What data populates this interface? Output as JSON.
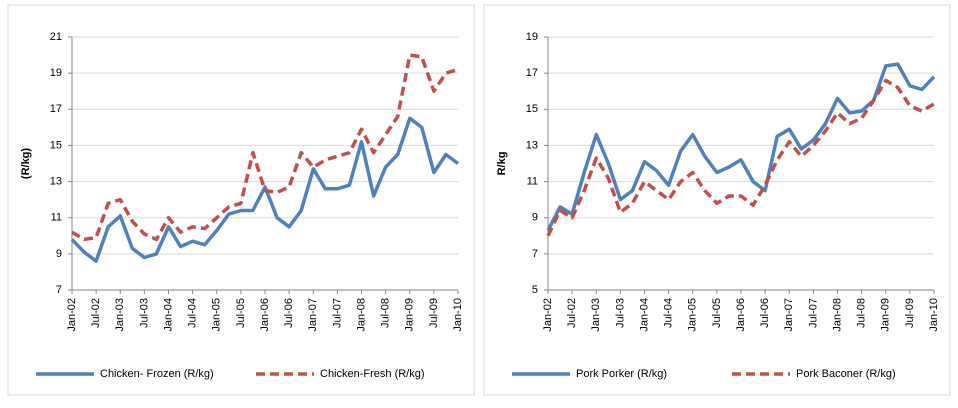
{
  "chart_data": [
    {
      "type": "line",
      "y_label": "(R/kg)",
      "categories": [
        "Jan-02",
        null,
        "Jul-02",
        null,
        "Jan-03",
        null,
        "Jul-03",
        null,
        "Jan-04",
        null,
        "Jul-04",
        null,
        "Jan-05",
        null,
        "Jul-05",
        null,
        "Jan-06",
        null,
        "Jul-06",
        null,
        "Jan-07",
        null,
        "Jul-07",
        null,
        "Jan-08",
        null,
        "Jul-08",
        null,
        "Jan-09",
        null,
        "Jul-09",
        null,
        "Jan-10"
      ],
      "ylim": [
        7,
        21
      ],
      "yticks": [
        7,
        9,
        11,
        13,
        15,
        17,
        19,
        21
      ],
      "grid": true,
      "series": [
        {
          "name": "Chicken- Frozen (R/kg)",
          "color": "#4f81bd",
          "line_style": "solid",
          "values": [
            9.8,
            9.1,
            8.6,
            10.5,
            11.1,
            9.3,
            8.8,
            9.0,
            10.5,
            9.4,
            9.7,
            9.5,
            10.3,
            11.2,
            11.4,
            11.4,
            12.7,
            11.0,
            10.5,
            11.4,
            13.7,
            12.6,
            12.6,
            12.8,
            15.2,
            12.2,
            13.8,
            14.5,
            16.5,
            16.0,
            13.5,
            14.5,
            14.0
          ]
        },
        {
          "name": "Chicken-Fresh (R/kg)",
          "color": "#c0504d",
          "line_style": "dashed",
          "values": [
            10.2,
            9.8,
            9.9,
            11.8,
            12.0,
            10.8,
            10.1,
            9.8,
            11.0,
            10.2,
            10.5,
            10.4,
            11.0,
            11.6,
            11.8,
            14.6,
            12.5,
            12.4,
            12.7,
            14.6,
            13.8,
            14.2,
            14.4,
            14.6,
            15.9,
            14.6,
            15.6,
            16.6,
            20.0,
            19.9,
            18.0,
            19.0,
            19.2
          ]
        }
      ]
    },
    {
      "type": "line",
      "y_label": "R/kg",
      "categories": [
        "Jan-02",
        null,
        "Jul-02",
        null,
        "Jan-03",
        null,
        "Jul-03",
        null,
        "Jan-04",
        null,
        "Jul-04",
        null,
        "Jan-05",
        null,
        "Jul-05",
        null,
        "Jan-06",
        null,
        "Jul-06",
        null,
        "Jan-07",
        null,
        "Jul-07",
        null,
        "Jan-08",
        null,
        "Jul-08",
        null,
        "Jan-09",
        null,
        "Jul-09",
        null,
        "Jan-10"
      ],
      "ylim": [
        5,
        19
      ],
      "yticks": [
        5,
        7,
        9,
        11,
        13,
        15,
        17,
        19
      ],
      "grid": true,
      "series": [
        {
          "name": "Pork Porker (R/kg)",
          "color": "#4f81bd",
          "line_style": "solid",
          "values": [
            8.3,
            9.6,
            9.2,
            11.5,
            13.6,
            12.0,
            10.0,
            10.5,
            12.1,
            11.6,
            10.8,
            12.7,
            13.6,
            12.4,
            11.5,
            11.8,
            12.2,
            11.0,
            10.5,
            13.5,
            13.9,
            12.8,
            13.3,
            14.2,
            15.6,
            14.8,
            14.9,
            15.5,
            17.4,
            17.5,
            16.3,
            16.1,
            16.8
          ]
        },
        {
          "name": "Pork Baconer (R/kg)",
          "color": "#c0504d",
          "line_style": "dashed",
          "values": [
            8.0,
            9.4,
            9.0,
            10.5,
            12.3,
            11.2,
            9.3,
            9.8,
            11.0,
            10.5,
            10.0,
            11.0,
            11.5,
            10.5,
            9.8,
            10.2,
            10.2,
            9.7,
            10.8,
            12.2,
            13.2,
            12.4,
            13.0,
            13.8,
            14.8,
            14.2,
            14.5,
            15.5,
            16.6,
            16.2,
            15.2,
            14.9,
            15.3
          ]
        }
      ]
    }
  ]
}
